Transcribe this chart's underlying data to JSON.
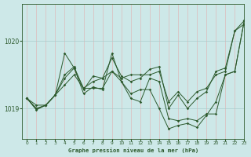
{
  "title": "Graphe pression niveau de la mer (hPa)",
  "background_color": "#cde8e8",
  "grid_color": "#aacccc",
  "line_color": "#2d5a2d",
  "xlim": [
    -0.5,
    23
  ],
  "ylim": [
    1018.55,
    1020.55
  ],
  "yticks": [
    1019,
    1020
  ],
  "xticks": [
    0,
    1,
    2,
    3,
    4,
    5,
    6,
    7,
    8,
    9,
    10,
    11,
    12,
    13,
    14,
    15,
    16,
    17,
    18,
    19,
    20,
    21,
    22,
    23
  ],
  "series": [
    [
      1019.15,
      1019.05,
      1019.05,
      1019.2,
      1019.35,
      1019.5,
      1019.3,
      1019.4,
      1019.45,
      1019.55,
      1019.45,
      1019.5,
      1019.5,
      1019.5,
      1019.55,
      1019.1,
      1019.25,
      1019.1,
      1019.25,
      1019.3,
      1019.5,
      1019.55,
      1020.15,
      1020.25
    ],
    [
      1019.15,
      1019.0,
      1019.05,
      1019.2,
      1019.45,
      1019.6,
      1019.3,
      1019.3,
      1019.3,
      1019.55,
      1019.4,
      1019.15,
      1019.1,
      1019.45,
      1019.4,
      1018.85,
      1018.82,
      1018.85,
      1018.82,
      1018.92,
      1018.92,
      1019.5,
      1019.55,
      1020.3
    ],
    [
      1019.15,
      1018.98,
      1019.05,
      1019.2,
      1019.82,
      1019.6,
      1019.22,
      1019.32,
      1019.28,
      1019.82,
      1019.4,
      1019.22,
      1019.28,
      1019.28,
      1019.0,
      1018.7,
      1018.75,
      1018.78,
      1018.72,
      1018.9,
      1019.1,
      1019.5,
      1019.55,
      1020.3
    ],
    [
      1019.15,
      1019.0,
      1019.05,
      1019.2,
      1019.5,
      1019.62,
      1019.28,
      1019.48,
      1019.45,
      1019.75,
      1019.48,
      1019.4,
      1019.45,
      1019.58,
      1019.62,
      1019.0,
      1019.2,
      1019.0,
      1019.15,
      1019.25,
      1019.55,
      1019.6,
      1020.15,
      1020.3
    ]
  ]
}
